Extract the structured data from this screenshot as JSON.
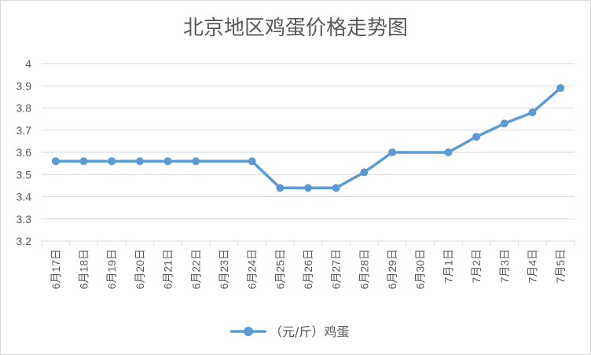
{
  "chart_data": {
    "type": "line",
    "title": "北京地区鸡蛋价格走势图",
    "categories": [
      "6月17日",
      "6月18日",
      "6月19日",
      "6月20日",
      "6月21日",
      "6月22日",
      "6月23日",
      "6月24日",
      "6月25日",
      "6月26日",
      "6月27日",
      "6月28日",
      "6月29日",
      "6月30日",
      "7月1日",
      "7月2日",
      "7月3日",
      "7月4日",
      "7月5日"
    ],
    "series": [
      {
        "name": "（元/斤）鸡蛋",
        "values": [
          3.56,
          3.56,
          3.56,
          3.56,
          3.56,
          3.56,
          null,
          3.56,
          3.44,
          3.44,
          3.44,
          3.51,
          3.6,
          null,
          3.6,
          3.67,
          3.73,
          3.78,
          3.89
        ],
        "color": "#5b9bd5"
      }
    ],
    "ylim": [
      3.2,
      4
    ],
    "yticks": [
      "3.2",
      "3.3",
      "3.4",
      "3.5",
      "3.6",
      "3.7",
      "3.8",
      "3.9",
      "4"
    ],
    "xlabel": "",
    "ylabel": "",
    "grid": "horizontal",
    "legend": "bottom"
  }
}
